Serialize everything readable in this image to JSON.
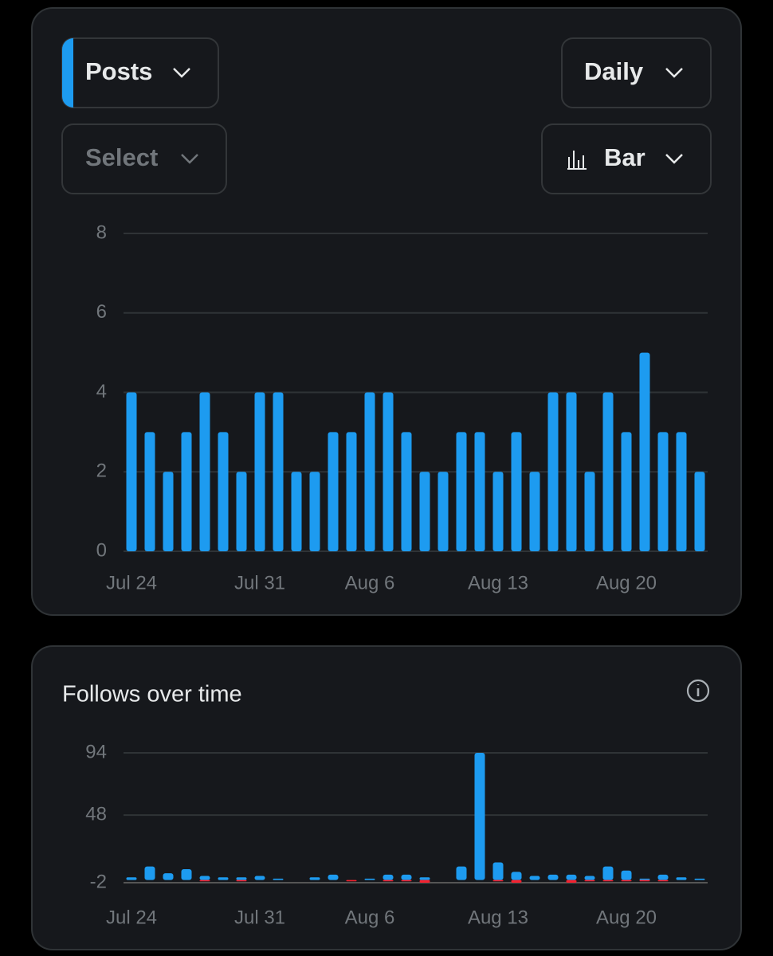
{
  "controls": {
    "metric": "Posts",
    "period": "Daily",
    "compare": "Select",
    "chart_kind": "Bar"
  },
  "chart_data": [
    {
      "type": "bar",
      "color": "#1d9bf0",
      "categories": [
        "Jul 24",
        null,
        null,
        null,
        null,
        null,
        null,
        "Jul 31",
        null,
        null,
        null,
        null,
        null,
        "Aug 6",
        null,
        null,
        null,
        null,
        null,
        null,
        "Aug 13",
        null,
        null,
        null,
        null,
        null,
        null,
        "Aug 20",
        null,
        null,
        null,
        null
      ],
      "values": [
        4,
        3,
        2,
        3,
        4,
        3,
        2,
        4,
        4,
        2,
        2,
        3,
        3,
        4,
        4,
        3,
        2,
        2,
        3,
        3,
        2,
        3,
        2,
        4,
        4,
        2,
        4,
        3,
        5,
        3,
        3,
        2
      ],
      "ylim": [
        0,
        8
      ],
      "yticks": [
        0,
        2,
        4,
        6,
        8
      ],
      "grid": true
    },
    {
      "type": "bar",
      "title": "Follows over time",
      "categories": [
        "Jul 24",
        null,
        null,
        null,
        null,
        null,
        null,
        "Jul 31",
        null,
        null,
        null,
        null,
        null,
        "Aug 6",
        null,
        null,
        null,
        null,
        null,
        null,
        "Aug 13",
        null,
        null,
        null,
        null,
        null,
        null,
        "Aug 20",
        null,
        null,
        null,
        null
      ],
      "series": [
        {
          "color": "#1d9bf0",
          "values": [
            2,
            10,
            5,
            8,
            3,
            2,
            2,
            3,
            1,
            0,
            2,
            4,
            0,
            1,
            4,
            4,
            2,
            0,
            10,
            94,
            13,
            6,
            3,
            4,
            4,
            3,
            10,
            7,
            1,
            4,
            2,
            1
          ]
        },
        {
          "color": "#f4212e",
          "values": [
            0,
            0,
            0,
            0,
            -1,
            0,
            -1,
            0,
            0,
            0,
            0,
            0,
            -1,
            0,
            -1,
            -1,
            -2,
            0,
            0,
            0,
            -1,
            -2,
            0,
            0,
            -2,
            -1,
            -1,
            -1,
            -1,
            -1,
            0,
            0
          ]
        }
      ],
      "ylim": [
        -2,
        94
      ],
      "yticks": [
        -2,
        48,
        94
      ],
      "grid": true
    }
  ]
}
